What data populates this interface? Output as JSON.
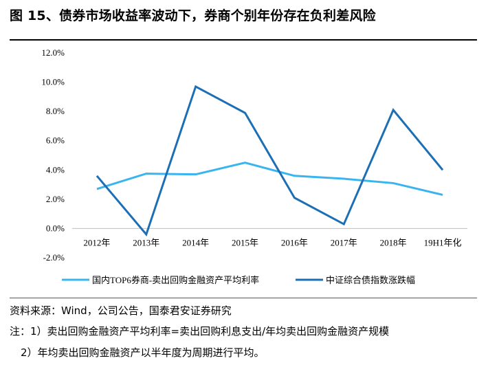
{
  "title": "图 15、债券市场收益率波动下，券商个别年份存在负利差风险",
  "source": "资料来源：Wind，公司公告，国泰君安证券研究",
  "note1": "注：1）卖出回购金融资产平均利率=卖出回购利息支出/年均卖出回购金融资产规模",
  "note2": "2）年均卖出回购金融资产以半年度为周期进行平均。",
  "colors": {
    "series1": "#3ab4ee",
    "series2": "#1c6fb4"
  },
  "chart_data": {
    "type": "line",
    "categories": [
      "2012年",
      "2013年",
      "2014年",
      "2015年",
      "2016年",
      "2017年",
      "2018年",
      "19H1年化"
    ],
    "series": [
      {
        "name": "国内TOP6券商-卖出回购金融资产平均利率",
        "values": [
          2.7,
          3.75,
          3.7,
          4.5,
          3.6,
          3.4,
          3.1,
          2.3
        ]
      },
      {
        "name": "中证综合债指数涨跌幅",
        "values": [
          3.6,
          -0.4,
          9.7,
          7.9,
          2.1,
          0.3,
          8.1,
          4.0
        ]
      }
    ],
    "yticks": [
      "12.0%",
      "10.0%",
      "8.0%",
      "6.0%",
      "4.0%",
      "2.0%",
      "0.0%",
      "-2.0%"
    ],
    "ylim": [
      -2,
      12
    ],
    "grid": false,
    "legend": "bottom"
  }
}
